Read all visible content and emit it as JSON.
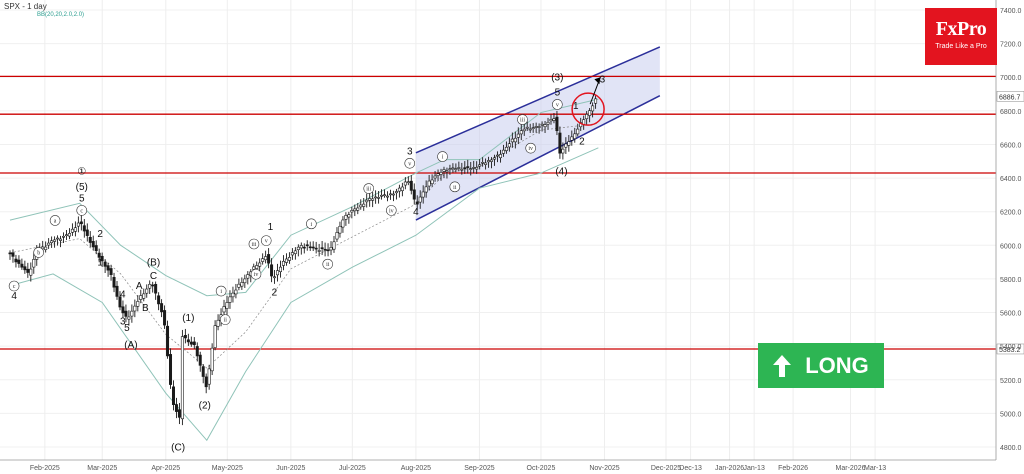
{
  "header": {
    "symbol_title": "SPX - 1 day",
    "indicator": "BB(20,20,2.0,2.0)"
  },
  "logo": {
    "brand": "FxPro",
    "tagline": "Trade Like a Pro"
  },
  "signal": {
    "label": "LONG",
    "color": "#2db553"
  },
  "colors": {
    "bull_candle": "#1a1a1a",
    "bb_band": "#8fc3b8",
    "channel": "#2b2f9a",
    "channel_fill": "#c9cdef",
    "levels": "#cc0000",
    "circle": "#e3141f"
  },
  "chart_data": {
    "type": "candlestick",
    "symbol": "SPX",
    "timeframe": "1 day",
    "x_tick_labels": [
      "Feb-2025",
      "Mar-2025",
      "Apr-2025",
      "May-2025",
      "Jun-2025",
      "Jul-2025",
      "Aug-2025",
      "Sep-2025",
      "Oct-2025",
      "Nov-2025",
      "Dec-2025",
      "Dec-13",
      "Jan-2026",
      "Jan-13",
      "Feb-2026",
      "Mar-2026",
      "Mar-13"
    ],
    "y_tick_labels": [
      "7400.0",
      "7200.0",
      "7000.0",
      "6800.0",
      "6600.0",
      "6400.0",
      "6200.0",
      "6000.0",
      "5800.0",
      "5600.0",
      "5400.0",
      "5200.0",
      "5000.0",
      "4800.0"
    ],
    "ylim": [
      4760,
      7440
    ],
    "grid": true,
    "horizontal_levels": [
      7005,
      6780,
      6430,
      5383
    ],
    "level_tags": [
      "6886.7",
      "5383.2"
    ],
    "price_path": [
      {
        "date": "2025-01-15",
        "close": 5950
      },
      {
        "date": "2025-01-20",
        "close": 5880
      },
      {
        "date": "2025-01-24",
        "close": 5830
      },
      {
        "date": "2025-01-28",
        "close": 5960
      },
      {
        "date": "2025-02-05",
        "close": 6030
      },
      {
        "date": "2025-02-12",
        "close": 6060
      },
      {
        "date": "2025-02-18",
        "close": 6140
      },
      {
        "date": "2025-02-25",
        "close": 5980
      },
      {
        "date": "2025-03-05",
        "close": 5830
      },
      {
        "date": "2025-03-10",
        "close": 5620
      },
      {
        "date": "2025-03-13",
        "close": 5560
      },
      {
        "date": "2025-03-19",
        "close": 5680
      },
      {
        "date": "2025-03-25",
        "close": 5780
      },
      {
        "date": "2025-03-31",
        "close": 5570
      },
      {
        "date": "2025-04-04",
        "close": 5080
      },
      {
        "date": "2025-04-08",
        "close": 4960
      },
      {
        "date": "2025-04-09",
        "close": 5460
      },
      {
        "date": "2025-04-15",
        "close": 5400
      },
      {
        "date": "2025-04-21",
        "close": 5150
      },
      {
        "date": "2025-04-25",
        "close": 5520
      },
      {
        "date": "2025-05-02",
        "close": 5690
      },
      {
        "date": "2025-05-12",
        "close": 5840
      },
      {
        "date": "2025-05-20",
        "close": 5940
      },
      {
        "date": "2025-05-23",
        "close": 5800
      },
      {
        "date": "2025-05-29",
        "close": 5910
      },
      {
        "date": "2025-06-06",
        "close": 6000
      },
      {
        "date": "2025-06-13",
        "close": 5980
      },
      {
        "date": "2025-06-20",
        "close": 5970
      },
      {
        "date": "2025-06-27",
        "close": 6170
      },
      {
        "date": "2025-07-10",
        "close": 6280
      },
      {
        "date": "2025-07-22",
        "close": 6310
      },
      {
        "date": "2025-07-28",
        "close": 6390
      },
      {
        "date": "2025-08-01",
        "close": 6240
      },
      {
        "date": "2025-08-08",
        "close": 6390
      },
      {
        "date": "2025-08-15",
        "close": 6450
      },
      {
        "date": "2025-08-22",
        "close": 6460
      },
      {
        "date": "2025-08-29",
        "close": 6460
      },
      {
        "date": "2025-09-10",
        "close": 6530
      },
      {
        "date": "2025-09-22",
        "close": 6690
      },
      {
        "date": "2025-10-01",
        "close": 6710
      },
      {
        "date": "2025-10-08",
        "close": 6760
      },
      {
        "date": "2025-10-10",
        "close": 6550
      },
      {
        "date": "2025-10-16",
        "close": 6640
      },
      {
        "date": "2025-10-24",
        "close": 6790
      },
      {
        "date": "2025-10-29",
        "close": 6890
      }
    ],
    "channel": {
      "upper": [
        {
          "date": "2025-08-01",
          "value": 6550
        },
        {
          "date": "2025-11-28",
          "value": 7180
        }
      ],
      "lower": [
        {
          "date": "2025-08-01",
          "value": 6150
        },
        {
          "date": "2025-11-28",
          "value": 6890
        }
      ]
    },
    "bollinger_upper": [
      {
        "date": "2025-01-15",
        "value": 6150
      },
      {
        "date": "2025-02-18",
        "value": 6250
      },
      {
        "date": "2025-03-10",
        "value": 6000
      },
      {
        "date": "2025-04-01",
        "value": 5820
      },
      {
        "date": "2025-04-21",
        "value": 5700
      },
      {
        "date": "2025-05-10",
        "value": 5720
      },
      {
        "date": "2025-06-01",
        "value": 6060
      },
      {
        "date": "2025-07-01",
        "value": 6230
      },
      {
        "date": "2025-08-01",
        "value": 6430
      },
      {
        "date": "2025-08-15",
        "value": 6510
      },
      {
        "date": "2025-09-01",
        "value": 6510
      },
      {
        "date": "2025-10-01",
        "value": 6790
      },
      {
        "date": "2025-10-29",
        "value": 6870
      }
    ],
    "bollinger_lower": [
      {
        "date": "2025-01-15",
        "value": 5760
      },
      {
        "date": "2025-02-05",
        "value": 5830
      },
      {
        "date": "2025-03-01",
        "value": 5660
      },
      {
        "date": "2025-04-01",
        "value": 5120
      },
      {
        "date": "2025-04-21",
        "value": 4840
      },
      {
        "date": "2025-05-10",
        "value": 5250
      },
      {
        "date": "2025-06-01",
        "value": 5660
      },
      {
        "date": "2025-07-01",
        "value": 5870
      },
      {
        "date": "2025-08-01",
        "value": 6060
      },
      {
        "date": "2025-09-01",
        "value": 6340
      },
      {
        "date": "2025-10-01",
        "value": 6430
      },
      {
        "date": "2025-10-29",
        "value": 6580
      }
    ],
    "wave_labels": [
      {
        "text": "4",
        "date": "2025-01-17",
        "price": 5680
      },
      {
        "text": "c",
        "date": "2025-01-17",
        "price": 5740,
        "circled": true
      },
      {
        "text": "b",
        "date": "2025-01-29",
        "price": 5940,
        "circled": true
      },
      {
        "text": "a",
        "date": "2025-02-06",
        "price": 6130,
        "circled": true
      },
      {
        "text": "①",
        "date": "2025-02-19",
        "price": 6420
      },
      {
        "text": "(5)",
        "date": "2025-02-19",
        "price": 6330
      },
      {
        "text": "5",
        "date": "2025-02-19",
        "price": 6260
      },
      {
        "text": "c",
        "date": "2025-02-19",
        "price": 6190,
        "circled": true
      },
      {
        "text": "2",
        "date": "2025-02-28",
        "price": 6050
      },
      {
        "text": "1",
        "date": "2025-02-28",
        "price": 5880
      },
      {
        "text": "4",
        "date": "2025-03-11",
        "price": 5690
      },
      {
        "text": "3",
        "date": "2025-03-11",
        "price": 5530
      },
      {
        "text": "5",
        "date": "2025-03-13",
        "price": 5490
      },
      {
        "text": "(A)",
        "date": "2025-03-15",
        "price": 5390
      },
      {
        "text": "A",
        "date": "2025-03-19",
        "price": 5740
      },
      {
        "text": "B",
        "date": "2025-03-22",
        "price": 5610
      },
      {
        "text": "(B)",
        "date": "2025-03-26",
        "price": 5880
      },
      {
        "text": "C",
        "date": "2025-03-26",
        "price": 5800
      },
      {
        "text": "(C)",
        "date": "2025-04-07",
        "price": 4780
      },
      {
        "text": "(1)",
        "date": "2025-04-12",
        "price": 5550
      },
      {
        "text": "(2)",
        "date": "2025-04-20",
        "price": 5030
      },
      {
        "text": "i",
        "date": "2025-04-28",
        "price": 5710,
        "circled": true
      },
      {
        "text": "ii",
        "date": "2025-04-30",
        "price": 5540,
        "circled": true
      },
      {
        "text": "iii",
        "date": "2025-05-14",
        "price": 5990,
        "circled": true
      },
      {
        "text": "iv",
        "date": "2025-05-15",
        "price": 5810,
        "circled": true
      },
      {
        "text": "v",
        "date": "2025-05-20",
        "price": 6010,
        "circled": true
      },
      {
        "text": "1",
        "date": "2025-05-22",
        "price": 6090
      },
      {
        "text": "2",
        "date": "2025-05-24",
        "price": 5700
      },
      {
        "text": "i",
        "date": "2025-06-11",
        "price": 6110,
        "circled": true
      },
      {
        "text": "ii",
        "date": "2025-06-19",
        "price": 5870,
        "circled": true
      },
      {
        "text": "iii",
        "date": "2025-07-09",
        "price": 6320,
        "circled": true
      },
      {
        "text": "iv",
        "date": "2025-07-20",
        "price": 6190,
        "circled": true
      },
      {
        "text": "3",
        "date": "2025-07-29",
        "price": 6540
      },
      {
        "text": "v",
        "date": "2025-07-29",
        "price": 6470,
        "circled": true
      },
      {
        "text": "4",
        "date": "2025-08-01",
        "price": 6180
      },
      {
        "text": "i",
        "date": "2025-08-14",
        "price": 6510,
        "circled": true
      },
      {
        "text": "ii",
        "date": "2025-08-20",
        "price": 6330,
        "circled": true
      },
      {
        "text": "iii",
        "date": "2025-09-22",
        "price": 6730,
        "circled": true
      },
      {
        "text": "iv",
        "date": "2025-09-26",
        "price": 6560,
        "circled": true
      },
      {
        "text": "(3)",
        "date": "2025-10-09",
        "price": 6980
      },
      {
        "text": "5",
        "date": "2025-10-09",
        "price": 6890
      },
      {
        "text": "v",
        "date": "2025-10-09",
        "price": 6820,
        "circled": true
      },
      {
        "text": "(4)",
        "date": "2025-10-11",
        "price": 6420
      },
      {
        "text": "1",
        "date": "2025-10-18",
        "price": 6810
      },
      {
        "text": "2",
        "date": "2025-10-21",
        "price": 6600
      },
      {
        "text": "3",
        "date": "2025-10-31",
        "price": 6970
      }
    ],
    "annotations": [
      {
        "shape": "circle",
        "date": "2025-10-24",
        "price": 6810
      },
      {
        "shape": "arrow",
        "from_date": "2025-10-25",
        "from_price": 6840,
        "to_date": "2025-10-30",
        "to_price": 7000
      }
    ]
  }
}
